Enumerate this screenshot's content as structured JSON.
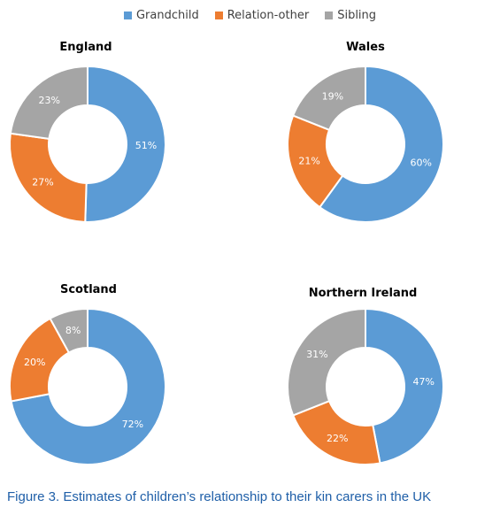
{
  "legend": [
    {
      "label": "Grandchild",
      "color": "#5b9bd5"
    },
    {
      "label": "Relation-other",
      "color": "#ed7d31"
    },
    {
      "label": "Sibling",
      "color": "#a5a5a5"
    }
  ],
  "caption": "Figure 3. Estimates of children’s relationship to their kin carers in the UK",
  "chart_data": [
    {
      "type": "pie",
      "title": "England",
      "categories": [
        "Grandchild",
        "Relation-other",
        "Sibling"
      ],
      "values": [
        51,
        27,
        23
      ],
      "labels": [
        "51%",
        "27%",
        "23%"
      ]
    },
    {
      "type": "pie",
      "title": "Wales",
      "categories": [
        "Grandchild",
        "Relation-other",
        "Sibling"
      ],
      "values": [
        60,
        21,
        19
      ],
      "labels": [
        "60%",
        "21%",
        "19%"
      ]
    },
    {
      "type": "pie",
      "title": "Scotland",
      "categories": [
        "Grandchild",
        "Relation-other",
        "Sibling"
      ],
      "values": [
        72,
        20,
        8
      ],
      "labels": [
        "72%",
        "20%",
        "8%"
      ]
    },
    {
      "type": "pie",
      "title": "Northern Ireland",
      "categories": [
        "Grandchild",
        "Relation-other",
        "Sibling"
      ],
      "values": [
        47,
        22,
        31
      ],
      "labels": [
        "47%",
        "22%",
        "31%"
      ]
    }
  ]
}
